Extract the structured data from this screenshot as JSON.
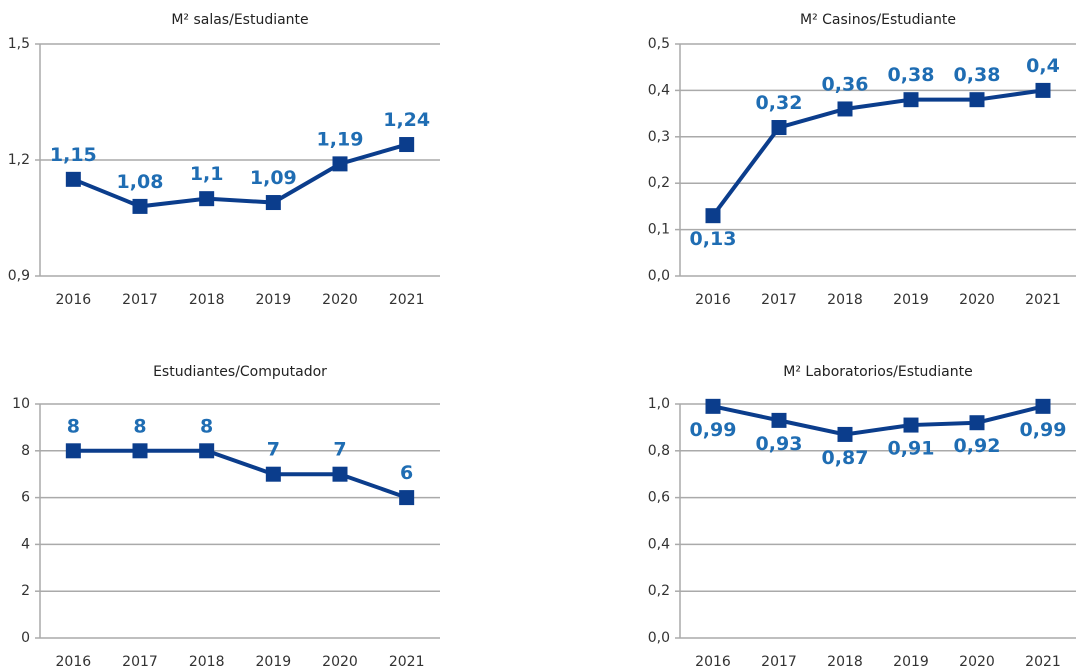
{
  "chart_data": [
    {
      "type": "line",
      "title": "M² salas/Estudiante",
      "categories": [
        "2016",
        "2017",
        "2018",
        "2019",
        "2020",
        "2021"
      ],
      "values": [
        1.15,
        1.08,
        1.1,
        1.09,
        1.19,
        1.24
      ],
      "value_labels": [
        "1,15",
        "1,08",
        "1,1",
        "1,09",
        "1,19",
        "1,24"
      ],
      "color": "#0b3d8c",
      "ylim": [
        0.9,
        1.5
      ],
      "yticks": [
        {
          "value": 0.9,
          "label": "0,9"
        },
        {
          "value": 1.2,
          "label": "1,2"
        },
        {
          "value": 1.5,
          "label": "1,5"
        }
      ],
      "grid": true
    },
    {
      "type": "line",
      "title": "M² Casinos/Estudiante",
      "categories": [
        "2016",
        "2017",
        "2018",
        "2019",
        "2020",
        "2021"
      ],
      "values": [
        0.13,
        0.32,
        0.36,
        0.38,
        0.38,
        0.4
      ],
      "value_labels": [
        "0,13",
        "0,32",
        "0,36",
        "0,38",
        "0,38",
        "0,4"
      ],
      "color": "#0b3d8c",
      "ylim": [
        0,
        0.5
      ],
      "yticks": [
        {
          "value": 0,
          "label": "0,0"
        },
        {
          "value": 0.1,
          "label": "0,1"
        },
        {
          "value": 0.2,
          "label": "0,2"
        },
        {
          "value": 0.3,
          "label": "0,3"
        },
        {
          "value": 0.4,
          "label": "0,4"
        },
        {
          "value": 0.5,
          "label": "0,5"
        }
      ],
      "grid": true
    },
    {
      "type": "line",
      "title": "Estudiantes/Computador",
      "categories": [
        "2016",
        "2017",
        "2018",
        "2019",
        "2020",
        "2021"
      ],
      "values": [
        8,
        8,
        8,
        7,
        7,
        6
      ],
      "color": "#0b3d8c",
      "ylim": [
        0,
        10
      ],
      "yticks": [
        0,
        2,
        4,
        6,
        8,
        10
      ],
      "grid": true
    },
    {
      "type": "line",
      "title": "M² Laboratorios/Estudiante",
      "categories": [
        "2016",
        "2017",
        "2018",
        "2019",
        "2020",
        "2021"
      ],
      "values": [
        0.99,
        0.93,
        0.87,
        0.91,
        0.92,
        0.99
      ],
      "value_labels": [
        "0,99",
        "0,93",
        "0,87",
        "0,91",
        "0,92",
        "0,99"
      ],
      "color": "#0b3d8c",
      "ylim": [
        0,
        1
      ],
      "yticks": [
        {
          "value": 0,
          "label": "0,0"
        },
        {
          "value": 0.2,
          "label": "0,2"
        },
        {
          "value": 0.4,
          "label": "0,4"
        },
        {
          "value": 0.6,
          "label": "0,6"
        },
        {
          "value": 0.8,
          "label": "0,8"
        },
        {
          "value": 1,
          "label": "1,0"
        }
      ],
      "grid": true
    }
  ]
}
